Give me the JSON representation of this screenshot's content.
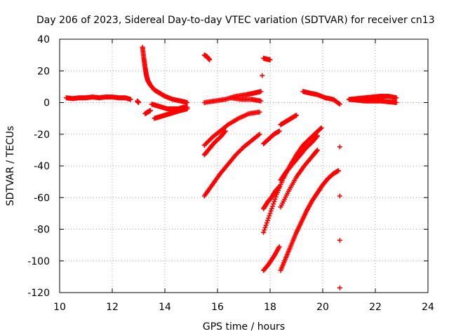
{
  "chart_data": {
    "type": "scatter",
    "title": "Day 206 of 2023, Sidereal Day-to-day VTEC variation (SDTVAR) for receiver cn13",
    "xlabel": "GPS time / hours",
    "ylabel": "SDTVAR / TECUs",
    "xlim": [
      10,
      24
    ],
    "ylim": [
      -120,
      40
    ],
    "xticks": [
      "10",
      "12",
      "14",
      "16",
      "18",
      "20",
      "22",
      "24"
    ],
    "yticks": [
      "40",
      "20",
      "0",
      "-20",
      "-40",
      "-60",
      "-80",
      "-100",
      "-120"
    ],
    "grid": true,
    "marker": "+",
    "color": "#ff0000",
    "series": [
      {
        "name": "s1",
        "x": [
          10.25,
          10.5,
          10.75,
          11,
          11.25,
          11.5,
          11.75,
          12,
          12.25,
          12.5,
          12.7
        ],
        "y": [
          3,
          2.5,
          3,
          3,
          3.5,
          3,
          3.5,
          3.5,
          3,
          3,
          2
        ]
      },
      {
        "name": "s2",
        "x": [
          12.95,
          13.0
        ],
        "y": [
          1,
          0
        ]
      },
      {
        "name": "s3",
        "x": [
          13.15,
          13.2,
          13.25,
          13.3,
          13.35,
          13.45,
          13.6,
          13.8,
          14,
          14.3,
          14.6,
          14.85
        ],
        "y": [
          35,
          28,
          22,
          17,
          14,
          11,
          8,
          6,
          4,
          2,
          1,
          0
        ]
      },
      {
        "name": "s4",
        "x": [
          13.25,
          13.35,
          13.45
        ],
        "y": [
          -7,
          -6,
          -5
        ]
      },
      {
        "name": "s5",
        "x": [
          13.5,
          13.7,
          13.9,
          14.1,
          14.3,
          14.5,
          14.7,
          14.85
        ],
        "y": [
          -1,
          -2,
          -3,
          -4,
          -4,
          -4,
          -3,
          -3
        ]
      },
      {
        "name": "s6",
        "x": [
          13.6,
          13.8,
          14,
          14.2,
          14.4,
          14.6,
          14.85
        ],
        "y": [
          -10,
          -9,
          -8,
          -7,
          -6,
          -5,
          -4
        ]
      },
      {
        "name": "s7",
        "x": [
          15.5,
          15.6,
          15.7
        ],
        "y": [
          30,
          29,
          27
        ]
      },
      {
        "name": "s8",
        "x": [
          15.5,
          15.9,
          16.3,
          16.7,
          17.1,
          17.4,
          17.65
        ],
        "y": [
          0,
          1,
          2,
          4,
          5,
          6,
          7
        ]
      },
      {
        "name": "s9",
        "x": [
          16.5,
          16.9,
          17.3,
          17.65
        ],
        "y": [
          3,
          2,
          2,
          1
        ]
      },
      {
        "name": "s10",
        "x": [
          15.5,
          15.8,
          16.1,
          16.4,
          16.8,
          17.2,
          17.6
        ],
        "y": [
          -27,
          -22,
          -18,
          -14,
          -10,
          -7,
          -6
        ]
      },
      {
        "name": "s11",
        "x": [
          15.5,
          15.7,
          15.9,
          16.1,
          16.3
        ],
        "y": [
          -33,
          -29,
          -25,
          -22,
          -18
        ]
      },
      {
        "name": "s12",
        "x": [
          15.5,
          15.8,
          16.1,
          16.4,
          16.7,
          17,
          17.3,
          17.6
        ],
        "y": [
          -59,
          -52,
          -45,
          -39,
          -33,
          -28,
          -24,
          -20
        ]
      },
      {
        "name": "s13",
        "x": [
          17.75,
          17.85,
          18.0
        ],
        "y": [
          28,
          27.5,
          27
        ]
      },
      {
        "name": "s14",
        "x": [
          17.7
        ],
        "y": [
          17
        ]
      },
      {
        "name": "s15",
        "x": [
          17.75,
          17.95,
          18.15,
          18.35
        ],
        "y": [
          -26,
          -23,
          -20,
          -18
        ]
      },
      {
        "name": "s16",
        "x": [
          18.4,
          18.6,
          18.8,
          19.0
        ],
        "y": [
          -14,
          -12,
          -10,
          -8
        ]
      },
      {
        "name": "s17",
        "x": [
          17.75,
          17.9,
          18.05,
          18.2,
          18.35
        ],
        "y": [
          -67,
          -63,
          -60,
          -56,
          -53
        ]
      },
      {
        "name": "s18",
        "x": [
          17.75,
          18.0,
          18.25,
          18.5,
          18.75,
          19,
          19.25,
          19.5,
          19.75,
          19.95
        ],
        "y": [
          -82,
          -70,
          -58,
          -48,
          -40,
          -33,
          -27,
          -23,
          -19,
          -16
        ]
      },
      {
        "name": "s19",
        "x": [
          18.4,
          18.6,
          18.8,
          19,
          19.2,
          19.4,
          19.6,
          19.8
        ],
        "y": [
          -49,
          -44,
          -40,
          -36,
          -32,
          -28,
          -25,
          -21
        ]
      },
      {
        "name": "s20",
        "x": [
          17.75,
          17.95,
          18.15,
          18.35
        ],
        "y": [
          -106,
          -102,
          -97,
          -91
        ]
      },
      {
        "name": "s21",
        "x": [
          18.4,
          18.6,
          18.8,
          19,
          19.2,
          19.4,
          19.6,
          19.8,
          20,
          20.2,
          20.4,
          20.6
        ],
        "y": [
          -106,
          -98,
          -90,
          -82,
          -75,
          -68,
          -62,
          -57,
          -52,
          -48,
          -45,
          -43
        ]
      },
      {
        "name": "s22",
        "x": [
          18.4,
          18.7,
          19,
          19.3,
          19.6,
          19.8
        ],
        "y": [
          -66,
          -56,
          -47,
          -40,
          -34,
          -30
        ]
      },
      {
        "name": "s23",
        "x": [
          19.25,
          19.5,
          19.8,
          20.1,
          20.4,
          20.65
        ],
        "y": [
          7,
          6,
          5,
          3,
          2,
          -1
        ]
      },
      {
        "name": "s24",
        "x": [
          20.65
        ],
        "y": [
          -28
        ]
      },
      {
        "name": "s25",
        "x": [
          20.65
        ],
        "y": [
          -59
        ]
      },
      {
        "name": "s26",
        "x": [
          20.65
        ],
        "y": [
          -87
        ]
      },
      {
        "name": "s27",
        "x": [
          20.65
        ],
        "y": [
          -117
        ]
      },
      {
        "name": "s28",
        "x": [
          21,
          21.3,
          21.6,
          21.9,
          22.2,
          22.5,
          22.8
        ],
        "y": [
          2,
          1.5,
          1,
          1,
          1,
          0.5,
          0
        ]
      },
      {
        "name": "s29",
        "x": [
          21,
          21.3,
          21.6,
          21.9,
          22.2,
          22.5,
          22.8
        ],
        "y": [
          2,
          2.5,
          3,
          3.5,
          4,
          4,
          3
        ]
      }
    ]
  }
}
